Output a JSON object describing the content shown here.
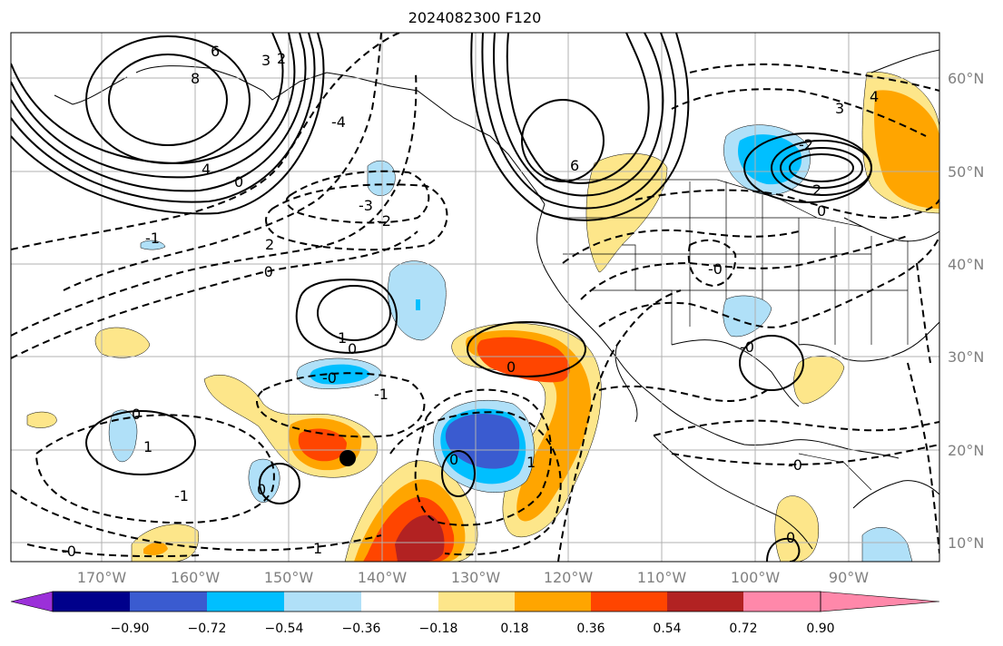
{
  "title": "2024082300 F120",
  "longitude_labels": [
    "170°W",
    "160°W",
    "150°W",
    "140°W",
    "130°W",
    "120°W",
    "110°W",
    "100°W",
    "90°W"
  ],
  "latitude_labels": [
    "60°N",
    "50°N",
    "40°N",
    "30°N",
    "20°N",
    "10°N"
  ],
  "colorbar": {
    "ticks": [
      "−0.90",
      "−0.72",
      "−0.54",
      "−0.36",
      "−0.18",
      "0.18",
      "0.36",
      "0.54",
      "0.72",
      "0.90"
    ],
    "colors": [
      "#9b30d9",
      "#00008b",
      "#3a5bd0",
      "#00bfff",
      "#b0e0f8",
      "#ffffff",
      "#fde68a",
      "#ffa500",
      "#ff4500",
      "#b22222",
      "#ff88aa"
    ]
  },
  "contour_labels": [
    "6",
    "8",
    "3",
    "2",
    "4",
    "0",
    "-4",
    "-3",
    "-2",
    "-1",
    "-0",
    "1",
    "2",
    "0",
    "3",
    "4",
    "6",
    "-1",
    "0",
    "-0",
    "1",
    "-1",
    "0",
    "1",
    "-0",
    "0",
    "2",
    "-2",
    "0",
    "-0",
    "1",
    "0",
    "-0",
    "0",
    "-0"
  ],
  "marker": "filled-circle"
}
